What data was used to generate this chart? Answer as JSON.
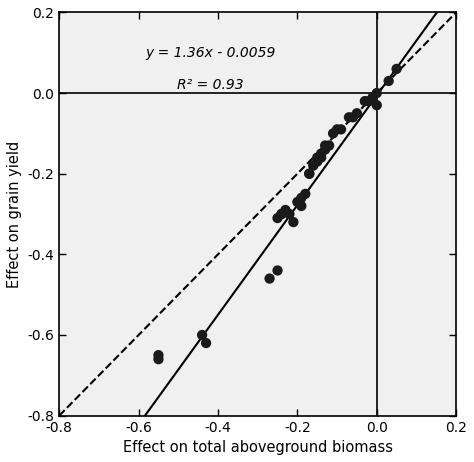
{
  "scatter_x": [
    -0.55,
    -0.55,
    -0.43,
    -0.44,
    -0.27,
    -0.25,
    -0.25,
    -0.24,
    -0.24,
    -0.23,
    -0.22,
    -0.21,
    -0.2,
    -0.19,
    -0.19,
    -0.18,
    -0.17,
    -0.17,
    -0.16,
    -0.15,
    -0.15,
    -0.14,
    -0.14,
    -0.13,
    -0.13,
    -0.12,
    -0.11,
    -0.1,
    -0.09,
    -0.07,
    -0.06,
    -0.05,
    -0.03,
    -0.02,
    -0.01,
    0.0,
    0.0,
    0.03,
    0.05
  ],
  "scatter_y": [
    -0.66,
    -0.65,
    -0.62,
    -0.6,
    -0.46,
    -0.44,
    -0.31,
    -0.3,
    -0.3,
    -0.29,
    -0.3,
    -0.32,
    -0.27,
    -0.28,
    -0.26,
    -0.25,
    -0.2,
    -0.2,
    -0.18,
    -0.17,
    -0.16,
    -0.15,
    -0.16,
    -0.14,
    -0.13,
    -0.13,
    -0.1,
    -0.09,
    -0.09,
    -0.06,
    -0.06,
    -0.05,
    -0.02,
    -0.02,
    -0.01,
    0.0,
    -0.03,
    0.03,
    0.06
  ],
  "reg_slope": 1.36,
  "reg_intercept": -0.0059,
  "r2": 0.93,
  "xlim": [
    -0.8,
    0.2
  ],
  "ylim": [
    -0.8,
    0.2
  ],
  "xticks": [
    -0.8,
    -0.6,
    -0.4,
    -0.2,
    0.0,
    0.2
  ],
  "yticks": [
    -0.8,
    -0.6,
    -0.4,
    -0.2,
    0.0,
    0.2
  ],
  "xlabel": "Effect on total aboveground biomass",
  "ylabel": "Effect on grain yield",
  "equation_text": "y = 1.36x - 0.0059",
  "r2_text": "R² = 0.93",
  "dot_color": "#1a1a1a",
  "dot_size": 55,
  "line_color": "#000000",
  "diag_color": "#000000",
  "bg_color": "#f0f0f0"
}
